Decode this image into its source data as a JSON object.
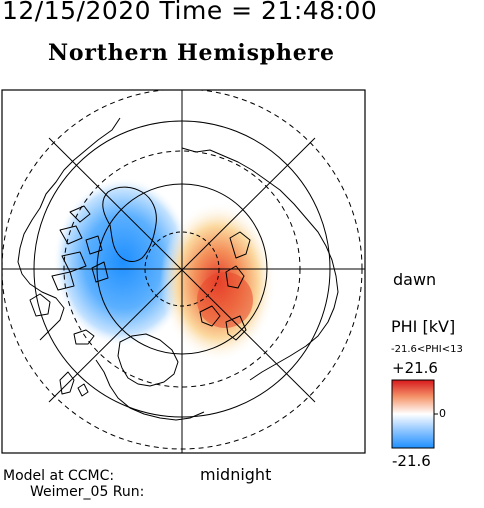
{
  "header": {
    "datetime": "12/15/2020 Time = 21:48:00",
    "title": "Northern Hemisphere"
  },
  "labels": {
    "dawn": "dawn",
    "midnight": "midnight"
  },
  "colorbar": {
    "title": "PHI [kV]",
    "range_text": "-21.6<PHI<13",
    "max_label": "+21.6",
    "zero_label": "0",
    "min_label": "-21.6",
    "colors": {
      "max": "#d7191c",
      "mid": "#ffffff",
      "min": "#1e90ff"
    }
  },
  "credits": {
    "line1": "Model at CCMC:",
    "line2": "Weimer_05 Run:"
  },
  "map": {
    "potential_cells": [
      {
        "name": "negative-cell",
        "peak_kv": -21.6,
        "color": "#1e8fff"
      },
      {
        "name": "positive-cell",
        "peak_kv": 13,
        "color": "#e8472a"
      }
    ],
    "colors": {
      "frame": "#000000",
      "coastline": "#000000",
      "grid": "#000000"
    }
  }
}
